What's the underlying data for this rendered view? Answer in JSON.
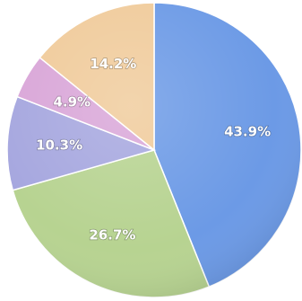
{
  "chart_data": {
    "type": "pie",
    "title": "",
    "start_angle_deg": 0,
    "direction": "clockwise",
    "slices": [
      {
        "label": "43.9%",
        "value": 43.9,
        "color": "#6c9ae6"
      },
      {
        "label": "26.7%",
        "value": 26.7,
        "color": "#b7d391"
      },
      {
        "label": "10.3%",
        "value": 10.3,
        "color": "#a6a7df"
      },
      {
        "label": "4.9%",
        "value": 4.9,
        "color": "#d9a6d8"
      },
      {
        "label": "14.2%",
        "value": 14.2,
        "color": "#f0cb9b"
      }
    ]
  }
}
